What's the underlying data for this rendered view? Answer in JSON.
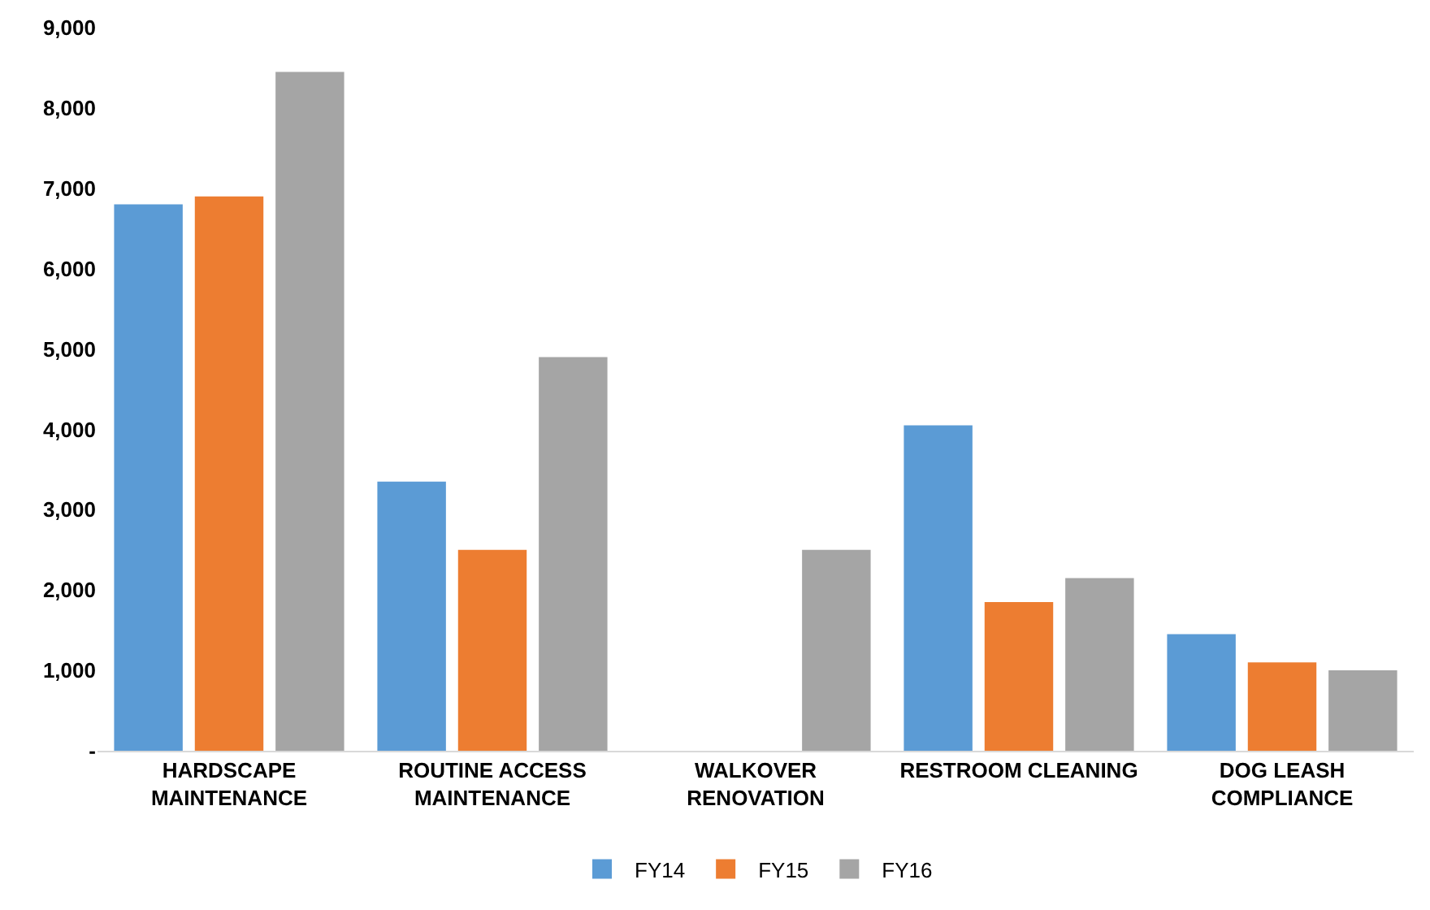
{
  "chart_data": {
    "type": "bar",
    "categories": [
      "HARDSCAPE\nMAINTENANCE",
      "ROUTINE ACCESS\nMAINTENANCE",
      "WALKOVER\nRENOVATION",
      "RESTROOM CLEANING",
      "DOG LEASH\nCOMPLIANCE"
    ],
    "series": [
      {
        "name": "FY14",
        "color": "#5b9bd5",
        "values": [
          6800,
          3350,
          0,
          4050,
          1450
        ]
      },
      {
        "name": "FY15",
        "color": "#ed7d31",
        "values": [
          6900,
          2500,
          0,
          1850,
          1100
        ]
      },
      {
        "name": "FY16",
        "color": "#a5a5a5",
        "values": [
          8450,
          4900,
          2500,
          2150,
          1000
        ]
      }
    ],
    "ylim": [
      0,
      9000
    ],
    "yticks": [
      {
        "value": 0,
        "label": "-"
      },
      {
        "value": 1000,
        "label": "1,000"
      },
      {
        "value": 2000,
        "label": "2,000"
      },
      {
        "value": 3000,
        "label": "3,000"
      },
      {
        "value": 4000,
        "label": "4,000"
      },
      {
        "value": 5000,
        "label": "5,000"
      },
      {
        "value": 6000,
        "label": "6,000"
      },
      {
        "value": 7000,
        "label": "7,000"
      },
      {
        "value": 8000,
        "label": "8,000"
      },
      {
        "value": 9000,
        "label": "9,000"
      }
    ],
    "grid": false,
    "legend": "bottom"
  }
}
